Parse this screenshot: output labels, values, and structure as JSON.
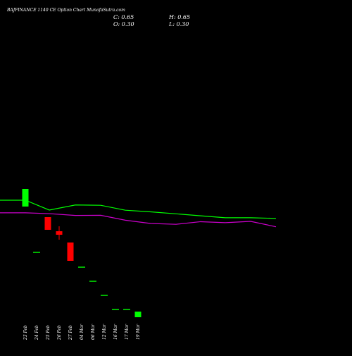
{
  "chart_data": {
    "type": "candlestick",
    "title": "BAJFINANCE 1140  CE Option  Chart MunafaSutra.com",
    "ohlc_labels": {
      "close": "C: 0.65",
      "high": "H: 0.65",
      "open": "O: 0.30",
      "low": "L: 0.30"
    },
    "dates": [
      "23 Feb",
      "24 Feb",
      "25 Feb",
      "26 Feb",
      "27 Feb",
      "04 Mar",
      "06 Mar",
      "12 Mar",
      "16 Mar",
      "17 Mar",
      "19 Mar"
    ],
    "candles": [
      {
        "open": 11.6,
        "high": 11.6,
        "low": 9.1,
        "close": 9.1,
        "color": "#00ff00"
      },
      {
        "open": 2.6,
        "high": 2.6,
        "low": 2.6,
        "close": 2.6,
        "color": "#00ff00"
      },
      {
        "open": 7.6,
        "high": 7.6,
        "low": 5.8,
        "close": 5.8,
        "color": "#ff0000"
      },
      {
        "open": 5.6,
        "high": 6.3,
        "low": 4.4,
        "close": 5.1,
        "color": "#ff0000"
      },
      {
        "open": 4.0,
        "high": 4.0,
        "low": 1.4,
        "close": 1.4,
        "color": "#ff0000"
      },
      {
        "open": 0.5,
        "high": 0.5,
        "low": 0.5,
        "close": 0.5,
        "color": "#00ff00"
      },
      {
        "open": -1.5,
        "high": -1.5,
        "low": -1.5,
        "close": -1.5,
        "color": "#00ff00"
      },
      {
        "open": -3.5,
        "high": -3.5,
        "low": -3.5,
        "close": -3.5,
        "color": "#00ff00"
      },
      {
        "open": -5.5,
        "high": -5.5,
        "low": -5.5,
        "close": -5.5,
        "color": "#00ff00"
      },
      {
        "open": -5.5,
        "high": -5.5,
        "low": -5.5,
        "close": -5.5,
        "color": "#00ff00"
      },
      {
        "open": -6.6,
        "high": -5.8,
        "low": -6.6,
        "close": -5.8,
        "color": "#00ff00"
      }
    ],
    "lines": [
      {
        "color": "#00ff00",
        "points": [
          [
            0,
            43
          ],
          [
            36,
            43
          ],
          [
            70,
            37
          ],
          [
            107,
            40.1
          ],
          [
            143,
            39.9
          ],
          [
            178,
            36.9
          ],
          [
            214,
            35.9
          ],
          [
            250,
            34.7
          ],
          [
            285,
            33.5
          ],
          [
            320,
            32.3
          ],
          [
            356,
            32.3
          ],
          [
            392,
            31.9
          ]
        ]
      },
      {
        "color": "#cc00cc",
        "points": [
          [
            0,
            35.3
          ],
          [
            36,
            35.3
          ],
          [
            70,
            34.8
          ],
          [
            107,
            33.7
          ],
          [
            143,
            33.8
          ],
          [
            178,
            30.8
          ],
          [
            214,
            28.8
          ],
          [
            250,
            28.3
          ],
          [
            285,
            29.9
          ],
          [
            320,
            29.3
          ],
          [
            356,
            30.1
          ],
          [
            392,
            26.8
          ]
        ]
      }
    ],
    "grid": false,
    "background": "#000000"
  }
}
